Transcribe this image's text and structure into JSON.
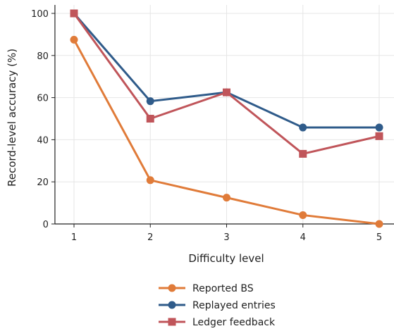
{
  "chart_data": {
    "type": "line",
    "xlabel": "Difficulty level",
    "ylabel": "Record-level accuracy (%)",
    "x": [
      1,
      2,
      3,
      4,
      5
    ],
    "xlim": [
      0.75,
      5.25
    ],
    "ylim": [
      0,
      104
    ],
    "xticks": [
      "1",
      "2",
      "3",
      "4",
      "5"
    ],
    "yticks": [
      "0",
      "20",
      "40",
      "60",
      "80",
      "100"
    ],
    "grid": true,
    "legend_position": "bottom-center",
    "series": [
      {
        "name": "Reported BS",
        "values": [
          87.5,
          20.8,
          12.5,
          4.2,
          0.0
        ],
        "color": "#e07b39",
        "marker": "circle"
      },
      {
        "name": "Replayed entries",
        "values": [
          100.0,
          58.3,
          62.5,
          45.8,
          45.8
        ],
        "color": "#2f5b8a",
        "marker": "circle"
      },
      {
        "name": "Ledger feedback",
        "values": [
          100.0,
          50.0,
          62.5,
          33.3,
          41.7
        ],
        "color": "#c0555a",
        "marker": "square"
      }
    ]
  }
}
